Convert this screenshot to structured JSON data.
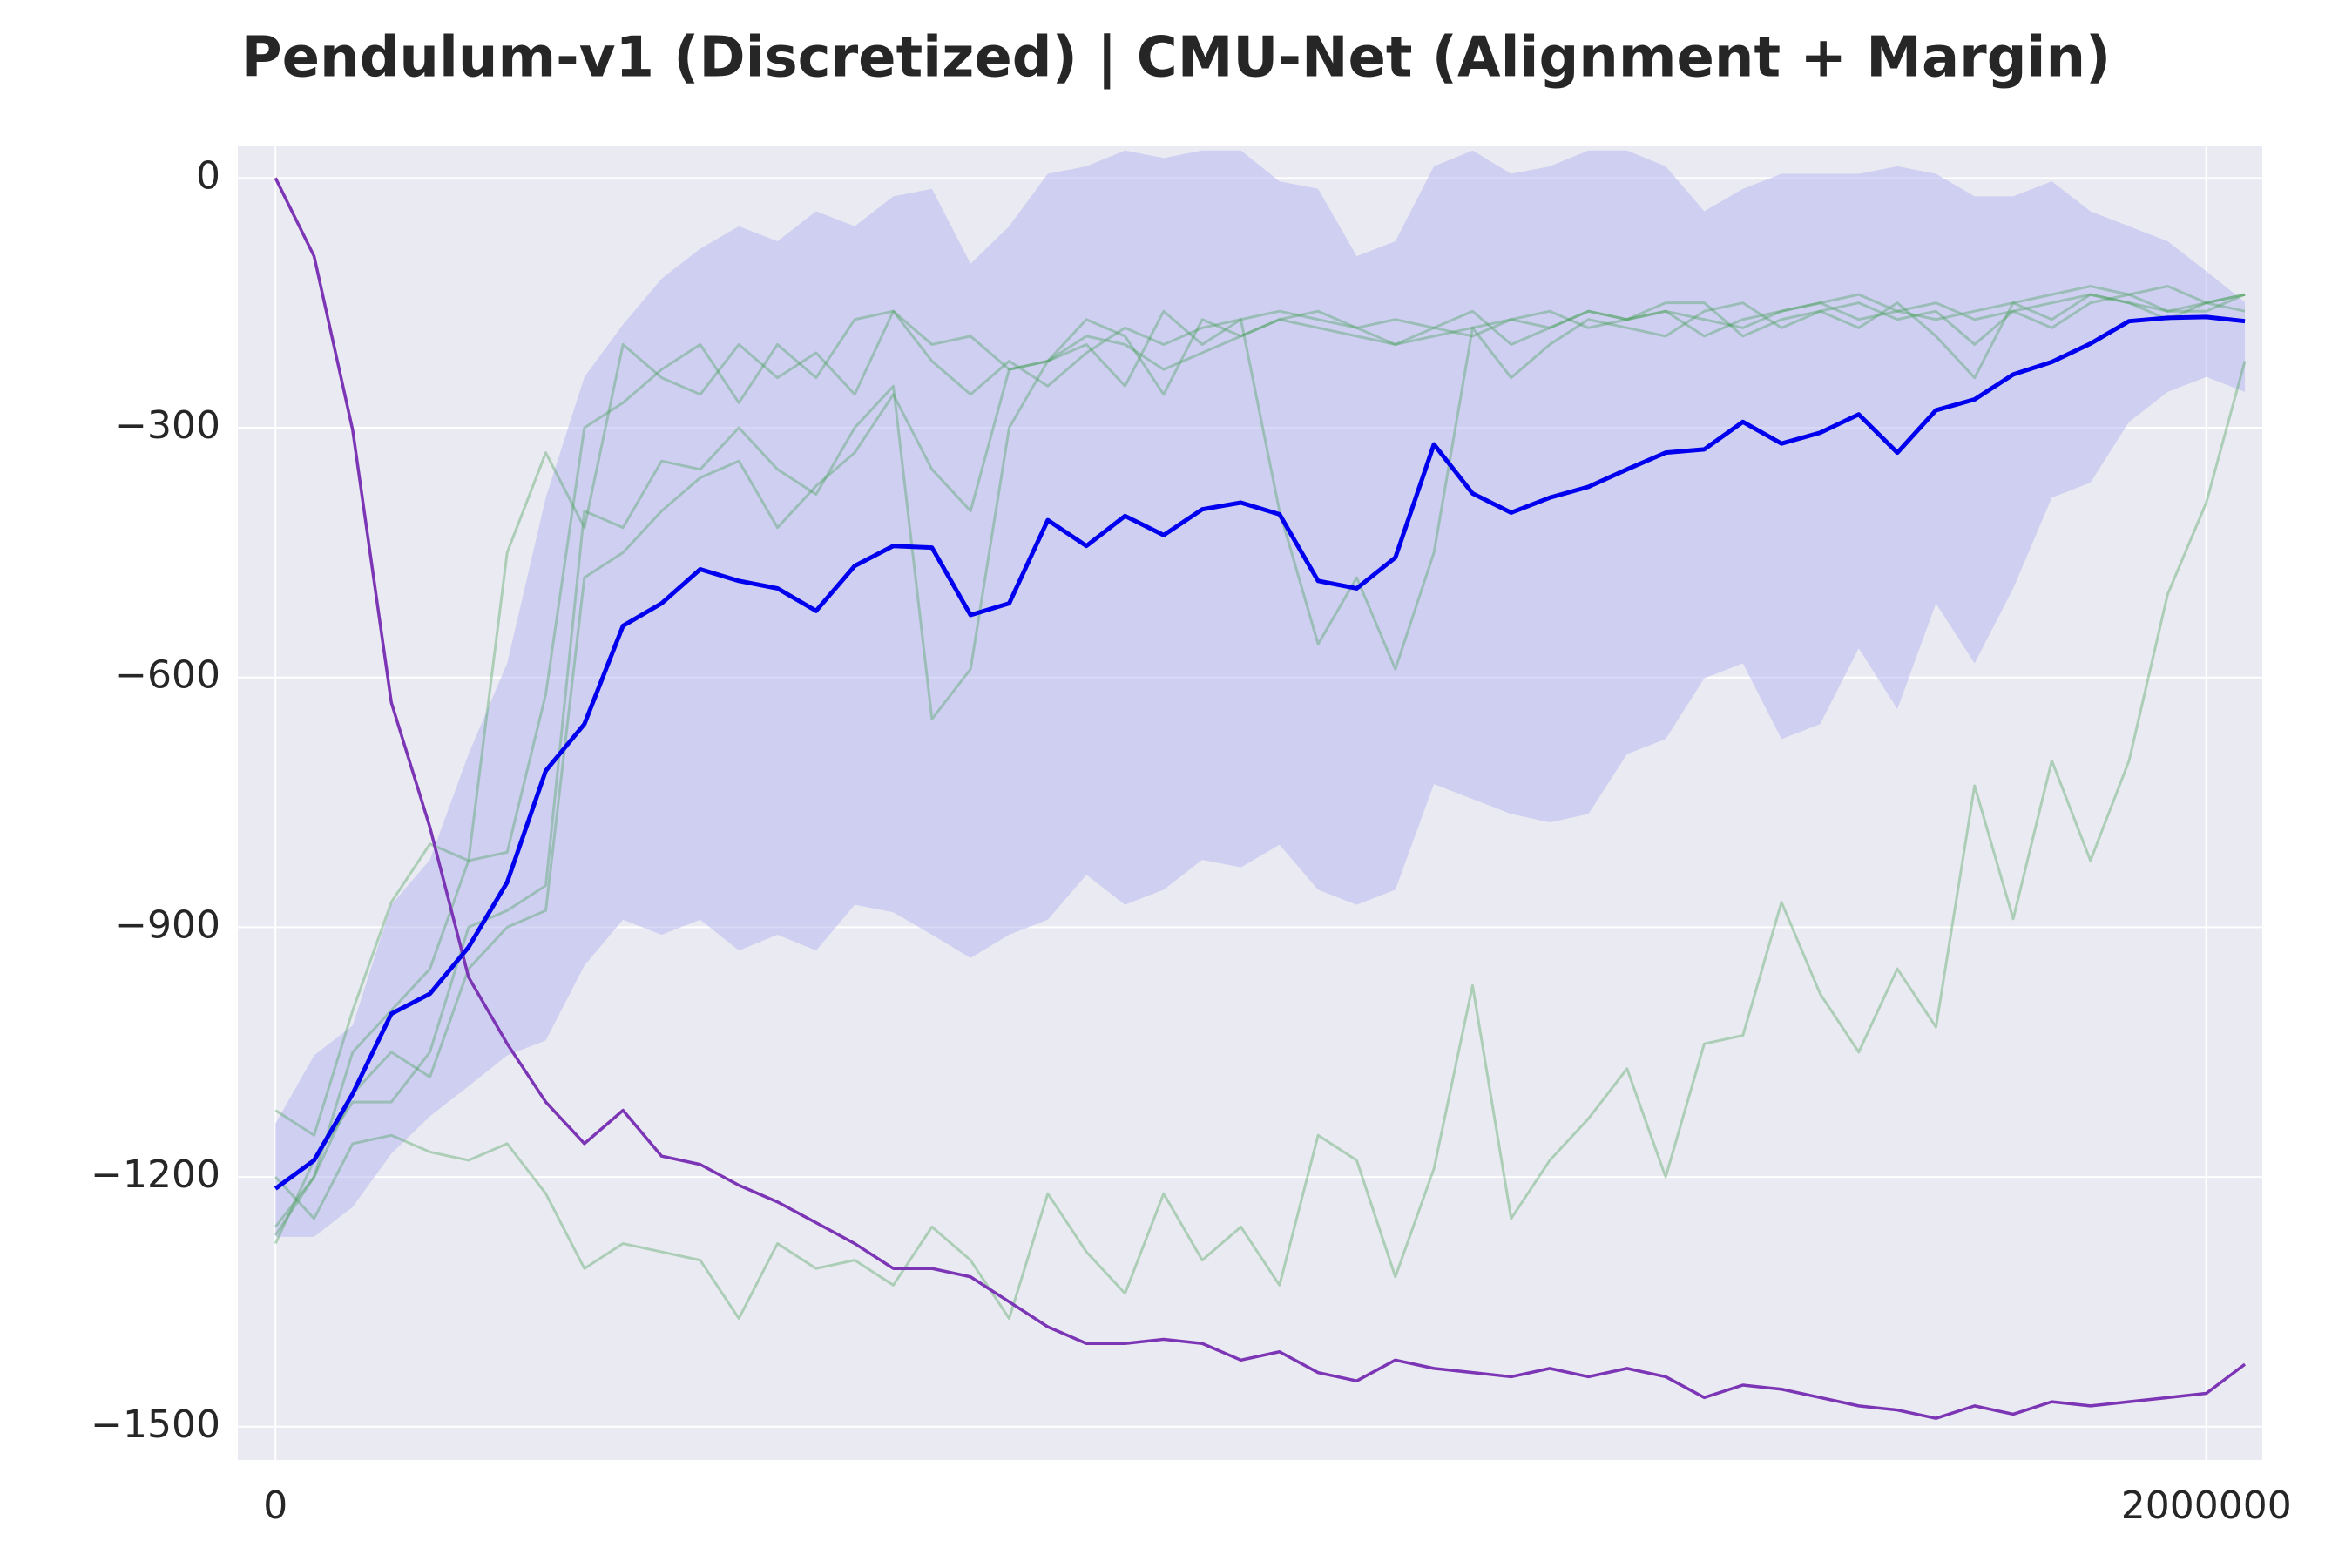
{
  "chart_data": {
    "type": "line",
    "title": "Pendulum-v1 (Discretized) | CMU-Net (Alignment + Margin)",
    "x": [
      0,
      40000,
      80000,
      120000,
      160000,
      200000,
      240000,
      280000,
      320000,
      360000,
      400000,
      440000,
      480000,
      520000,
      560000,
      600000,
      640000,
      680000,
      720000,
      760000,
      800000,
      840000,
      880000,
      920000,
      960000,
      1000000,
      1040000,
      1080000,
      1120000,
      1160000,
      1200000,
      1240000,
      1280000,
      1320000,
      1360000,
      1400000,
      1440000,
      1480000,
      1520000,
      1560000,
      1600000,
      1640000,
      1680000,
      1720000,
      1760000,
      1800000,
      1840000,
      1880000,
      1920000,
      1960000,
      2000000,
      2040000
    ],
    "xlim": [
      -39000,
      2058000
    ],
    "xticks": [
      0,
      2000000
    ],
    "ylim": [
      -1540,
      38
    ],
    "yticks": [
      {
        "value": -1500,
        "label": "−1500"
      },
      {
        "value": -1200,
        "label": "−1200"
      },
      {
        "value": -900,
        "label": "−900"
      },
      {
        "value": -600,
        "label": "−600"
      },
      {
        "value": -300,
        "label": "−300"
      },
      0
    ],
    "grid": true,
    "background": "#eaeaf2",
    "band": {
      "color": "#b8b8f0",
      "opacity": 0.55,
      "upper": [
        -1136,
        -1054,
        -1018,
        -873,
        -819,
        -692,
        -583,
        -384,
        -239,
        -176,
        -121,
        -85,
        -58,
        -76,
        -40,
        -58,
        -22,
        -13,
        -103,
        -58,
        5,
        14,
        33,
        24,
        33,
        33,
        -4,
        -13,
        -94,
        -76,
        14,
        33,
        5,
        14,
        33,
        33,
        14,
        -40,
        -13,
        5,
        5,
        5,
        14,
        5,
        -22,
        -22,
        -4,
        -40,
        -58,
        -76,
        -112,
        -149
      ],
      "lower": [
        -1272,
        -1272,
        -1236,
        -1172,
        -1127,
        -1091,
        -1054,
        -1036,
        -946,
        -891,
        -909,
        -891,
        -928,
        -909,
        -928,
        -873,
        -882,
        -909,
        -937,
        -909,
        -891,
        -837,
        -873,
        -855,
        -819,
        -828,
        -801,
        -855,
        -873,
        -855,
        -728,
        -746,
        -764,
        -774,
        -764,
        -692,
        -674,
        -601,
        -583,
        -674,
        -656,
        -565,
        -638,
        -511,
        -583,
        -493,
        -384,
        -366,
        -293,
        -257,
        -239,
        -257
      ]
    },
    "series": [
      {
        "color": "#3a9a4a",
        "opacity": 0.35,
        "linewidth": 3,
        "values": [
          -1120,
          -1150,
          -1000,
          -870,
          -800,
          -820,
          -450,
          -330,
          -420,
          -200,
          -240,
          -260,
          -200,
          -240,
          -210,
          -260,
          -160,
          -220,
          -260,
          -220,
          -250,
          -210,
          -180,
          -200,
          -180,
          -170,
          -160,
          -170,
          -180,
          -170,
          -180,
          -190,
          -170,
          -160,
          -180,
          -170,
          -160,
          -190,
          -170,
          -160,
          -150,
          -170,
          -160,
          -150,
          -170,
          -160,
          -150,
          -140,
          -150,
          -160,
          -160,
          -140
        ]
      },
      {
        "color": "#3a9a4a",
        "opacity": 0.35,
        "linewidth": 3,
        "values": [
          -1270,
          -1200,
          -1050,
          -1000,
          -950,
          -820,
          -810,
          -620,
          -300,
          -270,
          -230,
          -200,
          -270,
          -200,
          -240,
          -170,
          -160,
          -200,
          -190,
          -230,
          -220,
          -170,
          -190,
          -260,
          -170,
          -190,
          -170,
          -180,
          -190,
          -200,
          -180,
          -160,
          -200,
          -180,
          -160,
          -170,
          -150,
          -150,
          -190,
          -170,
          -160,
          -180,
          -150,
          -190,
          -240,
          -150,
          -170,
          -140,
          -150,
          -170,
          -150,
          -160
        ]
      },
      {
        "color": "#3a9a4a",
        "opacity": 0.35,
        "linewidth": 3,
        "values": [
          -1280,
          -1180,
          -1110,
          -1110,
          -1050,
          -900,
          -880,
          -850,
          -400,
          -420,
          -340,
          -350,
          -300,
          -350,
          -380,
          -300,
          -250,
          -650,
          -590,
          -300,
          -220,
          -200,
          -250,
          -160,
          -200,
          -170,
          -400,
          -560,
          -480,
          -590,
          -450,
          -180,
          -240,
          -200,
          -170,
          -180,
          -190,
          -160,
          -150,
          -180,
          -160,
          -150,
          -170,
          -160,
          -200,
          -160,
          -180,
          -150,
          -140,
          -160,
          -150,
          -140
        ]
      },
      {
        "color": "#3a9a4a",
        "opacity": 0.35,
        "linewidth": 3,
        "values": [
          -1200,
          -1250,
          -1160,
          -1150,
          -1170,
          -1180,
          -1160,
          -1220,
          -1310,
          -1280,
          -1290,
          -1300,
          -1370,
          -1280,
          -1310,
          -1300,
          -1330,
          -1260,
          -1300,
          -1370,
          -1220,
          -1290,
          -1340,
          -1220,
          -1300,
          -1260,
          -1330,
          -1150,
          -1180,
          -1320,
          -1190,
          -970,
          -1250,
          -1180,
          -1130,
          -1070,
          -1200,
          -1040,
          -1030,
          -870,
          -980,
          -1050,
          -950,
          -1020,
          -730,
          -890,
          -700,
          -820,
          -700,
          -500,
          -390,
          -220
        ]
      },
      {
        "color": "#3a9a4a",
        "opacity": 0.35,
        "linewidth": 3,
        "values": [
          -1260,
          -1200,
          -1100,
          -1050,
          -1080,
          -950,
          -900,
          -880,
          -480,
          -450,
          -400,
          -360,
          -340,
          -420,
          -370,
          -330,
          -260,
          -350,
          -400,
          -230,
          -220,
          -190,
          -200,
          -230,
          -210,
          -190,
          -170,
          -160,
          -180,
          -200,
          -190,
          -180,
          -170,
          -180,
          -160,
          -170,
          -160,
          -170,
          -180,
          -160,
          -150,
          -140,
          -160,
          -170,
          -160,
          -150,
          -140,
          -130,
          -140,
          -130,
          -150,
          -140
        ]
      },
      {
        "color": "#7b35b5",
        "opacity": 1,
        "linewidth": 3.5,
        "values": [
          0,
          -94,
          -303,
          -630,
          -780,
          -960,
          -1040,
          -1110,
          -1160,
          -1120,
          -1175,
          -1185,
          -1210,
          -1230,
          -1255,
          -1280,
          -1310,
          -1310,
          -1320,
          -1350,
          -1380,
          -1400,
          -1400,
          -1395,
          -1400,
          -1420,
          -1410,
          -1435,
          -1445,
          -1420,
          -1430,
          -1435,
          -1440,
          -1430,
          -1440,
          -1430,
          -1440,
          -1465,
          -1450,
          -1455,
          -1465,
          -1475,
          -1480,
          -1490,
          -1475,
          -1485,
          -1470,
          -1475,
          -1470,
          -1465,
          -1460,
          -1425
        ]
      },
      {
        "color": "#0000ee",
        "opacity": 1,
        "linewidth": 5,
        "values": [
          -1214,
          -1180,
          -1100,
          -1004,
          -980,
          -924,
          -846,
          -712,
          -656,
          -538,
          -511,
          -470,
          -484,
          -493,
          -520,
          -466,
          -442,
          -444,
          -525,
          -511,
          -411,
          -442,
          -406,
          -429,
          -398,
          -390,
          -404,
          -484,
          -493,
          -456,
          -320,
          -379,
          -402,
          -384,
          -371,
          -350,
          -330,
          -326,
          -293,
          -319,
          -306,
          -284,
          -330,
          -279,
          -266,
          -236,
          -221,
          -199,
          -172,
          -168,
          -167,
          -172
        ]
      }
    ]
  }
}
